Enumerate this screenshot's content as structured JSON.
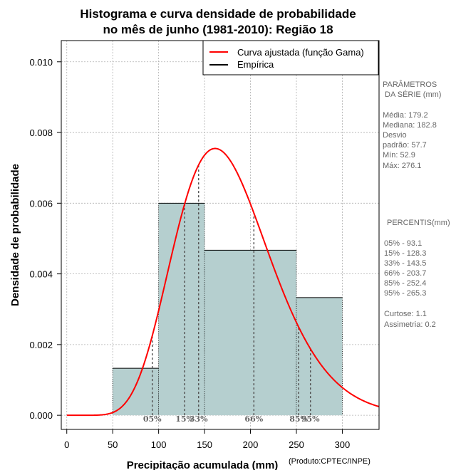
{
  "chart_data": {
    "type": "histogram",
    "title_lines": [
      "Histograma e curva densidade de probabilidade",
      "no mês de junho (1981-2010): Região 18"
    ],
    "xlabel": "Precipitação acumulada (mm)",
    "ylabel": "Densidade de probabilidade",
    "credit": "(Produto:CPTEC/INPE)",
    "xlim": [
      -6,
      340
    ],
    "ylim": [
      -0.0004,
      0.0106
    ],
    "x_ticks": [
      0,
      50,
      100,
      150,
      200,
      250,
      300
    ],
    "y_ticks": [
      0.0,
      0.002,
      0.004,
      0.006,
      0.008,
      0.01
    ],
    "y_tick_labels": [
      "0.000",
      "0.002",
      "0.004",
      "0.006",
      "0.008",
      "0.010"
    ],
    "grid": true,
    "bins": [
      {
        "x0": 50,
        "x1": 100,
        "density": 0.00133
      },
      {
        "x0": 100,
        "x1": 150,
        "density": 0.006
      },
      {
        "x0": 150,
        "x1": 250,
        "density": 0.00467
      },
      {
        "x0": 250,
        "x1": 300,
        "density": 0.00333
      }
    ],
    "bar_color": "#b5cfcf",
    "curve": {
      "name": "Curva ajustada (função Gama)",
      "color": "#ff0000",
      "shape": 10.5,
      "scale": 17.0,
      "x_range": [
        0,
        340
      ]
    },
    "empirical_name": "Empírica",
    "legend_position": "top-right",
    "percentiles": [
      {
        "label": "05%",
        "value": 93.1
      },
      {
        "label": "15%",
        "value": 128.3
      },
      {
        "label": "33%",
        "value": 143.5
      },
      {
        "label": "66%",
        "value": 203.7
      },
      {
        "label": "85%",
        "value": 252.4
      },
      {
        "label": "95%",
        "value": 265.3
      }
    ]
  },
  "side_panel": {
    "params_title_1": "PARÂMETROS",
    "params_title_2": "DA SÉRIE (mm)",
    "media": "Média:  179.2",
    "mediana": "Mediana:  182.8",
    "desvio_1": "Desvio",
    "desvio_2": "padrão:  57.7",
    "min": "Mín:  52.9",
    "max": "Máx:  276.1",
    "percentis_title": "PERCENTIS(mm)",
    "p05": "05% -  93.1",
    "p15": "15% -  128.3",
    "p33": "33% -  143.5",
    "p66": "66% -  203.7",
    "p85": "85% -  252.4",
    "p95": "95% -  265.3",
    "curtose": "Curtose:  1.1",
    "assimetria": "Assimetria:  0.2"
  }
}
